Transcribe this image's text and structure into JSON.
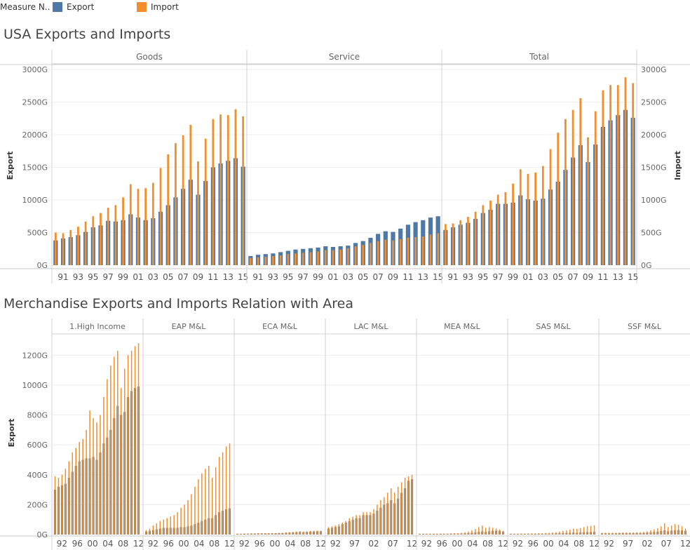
{
  "legend": {
    "title": "Measure N..",
    "items": [
      {
        "label": "Export",
        "color": "#4e79a7"
      },
      {
        "label": "Import",
        "color": "#f28e2b"
      }
    ]
  },
  "colors": {
    "export": "#4e79a7",
    "import": "#f28e2b",
    "export_grey": "#7f7f7f"
  },
  "titles": {
    "chart1": "USA Exports and Imports",
    "chart2": "Merchandise Exports and Imports Relation with Area"
  },
  "chart_data": [
    {
      "type": "bar",
      "title": "USA Exports and Imports",
      "ylabel_left": "Export",
      "ylabel_right": "Import",
      "ylim": [
        0,
        3000
      ],
      "yticks": [
        "0G",
        "500G",
        "1000G",
        "1500G",
        "2000G",
        "2500G",
        "3000G"
      ],
      "x": [
        1990,
        1991,
        1992,
        1993,
        1994,
        1995,
        1996,
        1997,
        1998,
        1999,
        2000,
        2001,
        2002,
        2003,
        2004,
        2005,
        2006,
        2007,
        2008,
        2009,
        2010,
        2011,
        2012,
        2013,
        2014,
        2015
      ],
      "xtick_labels": [
        "91",
        "93",
        "95",
        "97",
        "99",
        "01",
        "03",
        "05",
        "07",
        "09",
        "11",
        "13",
        "15"
      ],
      "panels": [
        {
          "name": "Goods",
          "export": [
            380,
            410,
            430,
            460,
            510,
            580,
            610,
            680,
            670,
            690,
            780,
            730,
            690,
            720,
            820,
            920,
            1040,
            1170,
            1310,
            1080,
            1290,
            1500,
            1560,
            1600,
            1640,
            1510
          ],
          "import": [
            500,
            490,
            540,
            590,
            670,
            750,
            800,
            880,
            920,
            1040,
            1240,
            1170,
            1180,
            1260,
            1490,
            1700,
            1870,
            1990,
            2150,
            1590,
            1940,
            2240,
            2310,
            2300,
            2390,
            2280
          ]
        },
        {
          "name": "Service",
          "export": [
            140,
            160,
            170,
            180,
            200,
            220,
            240,
            250,
            260,
            270,
            290,
            280,
            290,
            300,
            340,
            370,
            420,
            480,
            520,
            510,
            560,
            620,
            660,
            690,
            730,
            750
          ],
          "import": [
            110,
            120,
            130,
            140,
            150,
            170,
            180,
            190,
            200,
            210,
            230,
            230,
            240,
            260,
            290,
            310,
            340,
            370,
            390,
            380,
            400,
            420,
            430,
            440,
            470,
            490
          ]
        },
        {
          "name": "Total",
          "export": [
            540,
            580,
            620,
            650,
            710,
            800,
            850,
            940,
            940,
            960,
            1070,
            1010,
            990,
            1020,
            1160,
            1280,
            1460,
            1650,
            1840,
            1580,
            1850,
            2120,
            2220,
            2300,
            2380,
            2260
          ],
          "import": [
            630,
            640,
            690,
            740,
            820,
            920,
            990,
            1080,
            1120,
            1250,
            1470,
            1400,
            1420,
            1520,
            1780,
            2030,
            2240,
            2380,
            2560,
            1960,
            2360,
            2680,
            2760,
            2760,
            2880,
            2790
          ]
        }
      ]
    },
    {
      "type": "bar",
      "title": "Merchandise Exports and Imports Relation with Area",
      "ylabel": "Export",
      "ylim": [
        0,
        1300
      ],
      "yticks": [
        "0G",
        "200G",
        "400G",
        "600G",
        "800G",
        "1000G",
        "1200G"
      ],
      "x": [
        1990,
        1991,
        1992,
        1993,
        1994,
        1995,
        1996,
        1997,
        1998,
        1999,
        2000,
        2001,
        2002,
        2003,
        2004,
        2005,
        2006,
        2007,
        2008,
        2009,
        2010,
        2011,
        2012,
        2013,
        2014
      ],
      "panels": [
        {
          "name": "1.High Income",
          "xtick_labels": [
            "92",
            "96",
            "00",
            "04",
            "08",
            "12"
          ],
          "export": [
            300,
            320,
            330,
            340,
            380,
            420,
            460,
            490,
            500,
            510,
            510,
            520,
            500,
            550,
            610,
            650,
            700,
            780,
            860,
            800,
            820,
            920,
            960,
            980,
            990
          ],
          "import": [
            390,
            380,
            400,
            440,
            490,
            550,
            580,
            620,
            640,
            700,
            830,
            780,
            750,
            800,
            920,
            1040,
            1130,
            1190,
            1230,
            980,
            1110,
            1200,
            1230,
            1260,
            1280
          ]
        },
        {
          "name": "EAP M&L",
          "xtick_labels": [
            "92",
            "96",
            "00",
            "04",
            "08",
            "12"
          ],
          "export": [
            20,
            25,
            30,
            35,
            40,
            45,
            45,
            45,
            45,
            45,
            50,
            50,
            55,
            60,
            70,
            80,
            90,
            100,
            110,
            110,
            130,
            150,
            160,
            170,
            175
          ],
          "import": [
            30,
            40,
            60,
            75,
            90,
            100,
            110,
            120,
            130,
            150,
            180,
            200,
            230,
            270,
            320,
            370,
            410,
            440,
            460,
            380,
            450,
            520,
            550,
            590,
            610
          ]
        },
        {
          "name": "ECA M&L",
          "xtick_labels": [
            "92",
            "96",
            "00",
            "04",
            "08",
            "12"
          ],
          "export": [
            5,
            5,
            6,
            6,
            7,
            7,
            8,
            8,
            8,
            8,
            9,
            9,
            10,
            10,
            12,
            13,
            14,
            16,
            18,
            16,
            18,
            20,
            21,
            22,
            22
          ],
          "import": [
            6,
            6,
            7,
            7,
            8,
            8,
            9,
            9,
            9,
            9,
            10,
            10,
            11,
            12,
            14,
            16,
            18,
            20,
            22,
            19,
            21,
            24,
            25,
            26,
            26
          ]
        },
        {
          "name": "LAC M&L",
          "xtick_labels": [
            "92",
            "97",
            "02",
            "07",
            "12"
          ],
          "export": [
            40,
            45,
            50,
            55,
            70,
            80,
            90,
            100,
            110,
            110,
            130,
            130,
            130,
            140,
            160,
            180,
            200,
            210,
            230,
            210,
            240,
            280,
            310,
            360,
            370
          ],
          "import": [
            50,
            55,
            60,
            70,
            80,
            90,
            110,
            120,
            130,
            130,
            150,
            150,
            150,
            170,
            200,
            230,
            250,
            280,
            310,
            280,
            320,
            350,
            380,
            390,
            400
          ]
        },
        {
          "name": "MEA M&L",
          "xtick_labels": [
            "92",
            "96",
            "00",
            "04",
            "08",
            "12"
          ],
          "export": [
            5,
            5,
            5,
            5,
            5,
            5,
            5,
            5,
            5,
            6,
            6,
            6,
            7,
            8,
            10,
            12,
            14,
            18,
            22,
            18,
            22,
            25,
            26,
            25,
            20
          ],
          "import": [
            6,
            6,
            6,
            6,
            6,
            6,
            7,
            7,
            7,
            8,
            9,
            10,
            12,
            15,
            20,
            28,
            38,
            50,
            60,
            45,
            50,
            45,
            40,
            35,
            25
          ]
        },
        {
          "name": "SAS M&L",
          "xtick_labels": [
            "92",
            "96",
            "00",
            "04",
            "08",
            "12"
          ],
          "export": [
            5,
            5,
            5,
            5,
            5,
            5,
            5,
            5,
            5,
            5,
            6,
            6,
            7,
            8,
            9,
            10,
            11,
            12,
            13,
            12,
            14,
            15,
            16,
            17,
            18
          ],
          "import": [
            6,
            6,
            6,
            7,
            7,
            8,
            8,
            9,
            9,
            10,
            11,
            12,
            14,
            16,
            20,
            24,
            28,
            34,
            40,
            38,
            44,
            50,
            56,
            58,
            62
          ]
        },
        {
          "name": "SSF M&L",
          "xtick_labels": [
            "92",
            "97",
            "02",
            "07",
            "12"
          ],
          "export": [
            8,
            8,
            8,
            8,
            8,
            9,
            9,
            9,
            9,
            9,
            10,
            10,
            11,
            13,
            15,
            18,
            20,
            24,
            28,
            22,
            26,
            30,
            30,
            28,
            25
          ],
          "import": [
            12,
            12,
            12,
            12,
            12,
            13,
            14,
            14,
            14,
            14,
            16,
            16,
            18,
            22,
            28,
            35,
            42,
            55,
            75,
            50,
            60,
            70,
            65,
            55,
            40
          ]
        }
      ]
    }
  ]
}
